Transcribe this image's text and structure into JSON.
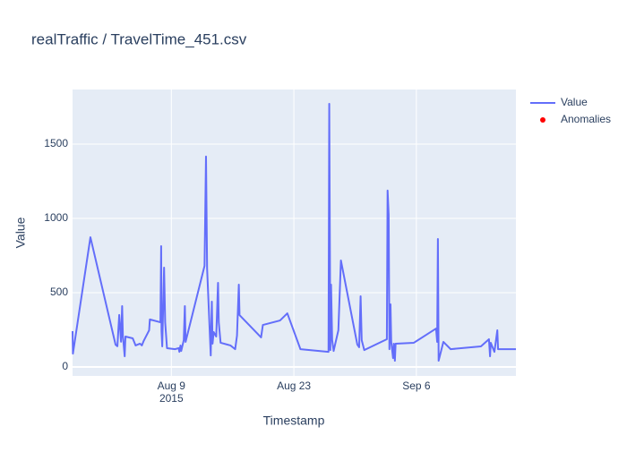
{
  "chart_data": {
    "type": "line",
    "title": "realTraffic / TravelTime_451.csv",
    "xlabel": "Timestamp",
    "ylabel": "Value",
    "xlim": [
      "2015-07-28 17:00",
      "2015-09-17 09:00"
    ],
    "xticks": [
      {
        "value": "2015-08-09",
        "label": "Aug 9"
      },
      {
        "value": "2015-08-23",
        "label": "Aug 23"
      },
      {
        "value": "2015-09-06",
        "label": "Sep 6"
      }
    ],
    "x_year_label": "2015",
    "ylim": [
      -60,
      1867
    ],
    "yticks": [
      0,
      500,
      1000,
      1500
    ],
    "grid": true,
    "legend": "top-right",
    "series": [
      {
        "name": "Value",
        "color": "#636efa",
        "mode": "lines",
        "x": [
          "2015-07-28 17:00",
          "2015-07-28 18:00",
          "2015-07-30 18:00",
          "2015-08-02 15:00",
          "2015-08-02 20:00",
          "2015-08-03 01:00",
          "2015-08-03 06:00",
          "2015-08-03 09:00",
          "2015-08-03 11:00",
          "2015-08-03 16:00",
          "2015-08-03 18:00",
          "2015-08-04 14:00",
          "2015-08-04 22:00",
          "2015-08-05 10:00",
          "2015-08-05 15:00",
          "2015-08-05 20:00",
          "2015-08-06 11:00",
          "2015-08-06 13:00",
          "2015-08-07 18:00",
          "2015-08-07 20:00",
          "2015-08-07 21:00",
          "2015-08-07 23:00",
          "2015-08-08 04:00",
          "2015-08-08 07:00",
          "2015-08-08 12:00",
          "2015-08-09 10:00",
          "2015-08-09 20:00",
          "2015-08-09 22:00",
          "2015-08-10 01:00",
          "2015-08-10 03:00",
          "2015-08-10 10:00",
          "2015-08-10 13:00",
          "2015-08-10 15:00",
          "2015-08-12 19:00",
          "2015-08-12 23:00",
          "2015-08-13 02:00",
          "2015-08-13 12:00",
          "2015-08-13 15:00",
          "2015-08-13 17:00",
          "2015-08-13 20:00",
          "2015-08-14 03:00",
          "2015-08-14 08:00",
          "2015-08-14 10:00",
          "2015-08-14 15:00",
          "2015-08-15 18:00",
          "2015-08-16 07:00",
          "2015-08-16 12:00",
          "2015-08-16 17:00",
          "2015-08-16 19:00",
          "2015-08-19 06:00",
          "2015-08-19 11:00",
          "2015-08-21 10:00",
          "2015-08-22 06:00",
          "2015-08-23 18:00",
          "2015-08-26 23:00",
          "2015-08-27 01:00",
          "2015-08-27 04:00",
          "2015-08-27 06:00",
          "2015-08-27 09:00",
          "2015-08-27 13:00",
          "2015-08-28 02:00",
          "2015-08-28 09:00",
          "2015-08-30 06:00",
          "2015-08-30 11:00",
          "2015-08-30 15:00",
          "2015-08-30 18:00",
          "2015-08-31 01:00",
          "2015-09-02 15:00",
          "2015-09-02 17:00",
          "2015-09-02 20:00",
          "2015-09-02 22:00",
          "2015-09-03 01:00",
          "2015-09-03 03:00",
          "2015-09-03 08:00",
          "2015-09-03 10:00",
          "2015-09-03 13:00",
          "2015-09-03 15:00",
          "2015-09-05 17:00",
          "2015-09-08 06:00",
          "2015-09-08 09:00",
          "2015-09-08 11:00",
          "2015-09-08 13:00",
          "2015-09-09 02:00",
          "2015-09-09 22:00",
          "2015-09-13 09:00",
          "2015-09-14 07:00",
          "2015-09-14 10:00",
          "2015-09-14 12:00",
          "2015-09-14 22:00",
          "2015-09-15 03:00",
          "2015-09-15 06:00",
          "2015-09-15 08:00",
          "2015-09-17 09:00"
        ],
        "values": [
          241,
          90,
          873,
          150,
          140,
          350,
          170,
          410,
          210,
          72,
          205,
          193,
          145,
          157,
          145,
          175,
          247,
          320,
          301,
          813,
          241,
          139,
          669,
          301,
          127,
          120,
          127,
          102,
          145,
          108,
          181,
          410,
          169,
          681,
          1416,
          663,
          78,
          440,
          157,
          235,
          205,
          566,
          301,
          163,
          145,
          120,
          211,
          554,
          349,
          199,
          283,
          313,
          361,
          120,
          102,
          1771,
          114,
          554,
          181,
          108,
          247,
          717,
          151,
          133,
          476,
          181,
          114,
          187,
          1187,
          1024,
          120,
          422,
          169,
          60,
          157,
          42,
          157,
          163,
          259,
          169,
          861,
          42,
          169,
          120,
          139,
          187,
          72,
          163,
          102,
          193,
          247,
          120,
          120
        ]
      },
      {
        "name": "Anomalies",
        "color": "#ff0000",
        "mode": "markers",
        "x": [],
        "values": []
      }
    ]
  }
}
